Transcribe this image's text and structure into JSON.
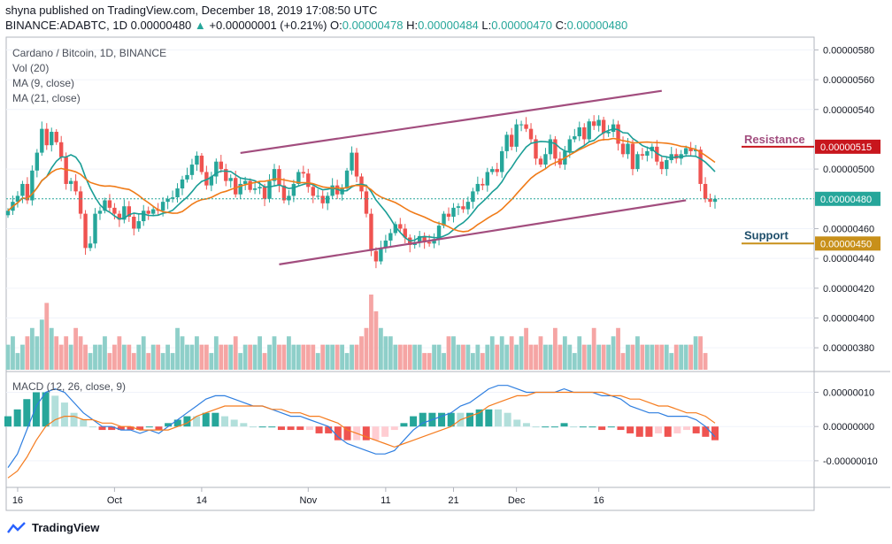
{
  "header": {
    "published": "shyna published on TradingView.com, December 18, 2019 17:08:50 UTC",
    "symbol": "BINANCE:ADABTC, 1D",
    "last": "0.00000480",
    "change_symbol": "▲",
    "change": "+0.00000001 (+0.21%)",
    "o_label": "O:",
    "o": "0.00000478",
    "h_label": "H:",
    "h": "0.00000484",
    "l_label": "L:",
    "l": "0.00000470",
    "c_label": "C:",
    "c": "0.00000480"
  },
  "legend": {
    "title": "Cardano / Bitcoin, 1D, BINANCE",
    "vol": "Vol (20)",
    "ma9": "MA (9, close)",
    "ma21": "MA (21, close)",
    "macd": "MACD (12, 26, close, 9)"
  },
  "footer": {
    "brand": "TradingView"
  },
  "colors": {
    "up": "#26a69a",
    "down": "#ef5350",
    "ma9": "#1a9e96",
    "ma21": "#f07b18",
    "channel": "#a24d7e",
    "resistance": "#c8161d",
    "support": "#c8901a",
    "macd": "#2f7fe0",
    "signal": "#f57c1f"
  },
  "chart_data": [
    {
      "type": "candlestick",
      "title": "Cardano / Bitcoin, 1D, BINANCE",
      "x_ticks": [
        "16",
        "Oct",
        "14",
        "Nov",
        "11",
        "21",
        "Dec",
        "16"
      ],
      "y_ticks": [
        "0.00000580",
        "0.00000560",
        "0.00000540",
        "0.00000500",
        "0.00000460",
        "0.00000440",
        "0.00000420",
        "0.00000400",
        "0.00000380"
      ],
      "ylim": [
        3.7e-06,
        5.85e-06
      ],
      "close": [
        4.72e-06,
        4.78e-06,
        4.82e-06,
        4.9e-06,
        4.79e-06,
        4.99e-06,
        5.11e-06,
        5.27e-06,
        5.16e-06,
        5.25e-06,
        5.18e-06,
        5.08e-06,
        4.9e-06,
        4.92e-06,
        4.85e-06,
        4.7e-06,
        4.47e-06,
        4.5e-06,
        4.7e-06,
        4.72e-06,
        4.79e-06,
        4.74e-06,
        4.7e-06,
        4.66e-06,
        4.75e-06,
        4.68e-06,
        4.6e-06,
        4.65e-06,
        4.72e-06,
        4.7e-06,
        4.73e-06,
        4.72e-06,
        4.78e-06,
        4.8e-06,
        4.81e-06,
        4.87e-06,
        4.93e-06,
        4.96e-06,
        5.03e-06,
        5.09e-06,
        4.98e-06,
        4.89e-06,
        4.95e-06,
        5.05e-06,
        5e-06,
        4.92e-06,
        4.94e-06,
        4.83e-06,
        4.9e-06,
        4.92e-06,
        4.86e-06,
        4.87e-06,
        4.88e-06,
        4.8e-06,
        4.92e-06,
        5e-06,
        4.89e-06,
        4.79e-06,
        4.82e-06,
        4.9e-06,
        4.98e-06,
        4.97e-06,
        4.88e-06,
        4.82e-06,
        4.82e-06,
        4.77e-06,
        4.82e-06,
        4.89e-06,
        4.83e-06,
        4.87e-06,
        4.99e-06,
        5.11e-06,
        4.95e-06,
        4.85e-06,
        4.7e-06,
        4.45e-06,
        4.38e-06,
        4.47e-06,
        4.52e-06,
        4.57e-06,
        4.63e-06,
        4.6e-06,
        4.54e-06,
        4.49e-06,
        4.51e-06,
        4.55e-06,
        4.51e-06,
        4.5e-06,
        4.53e-06,
        4.62e-06,
        4.7e-06,
        4.68e-06,
        4.74e-06,
        4.75e-06,
        4.73e-06,
        4.78e-06,
        4.85e-06,
        4.9e-06,
        4.89e-06,
        4.98e-06,
        5e-06,
        4.98e-06,
        5.12e-06,
        5.23e-06,
        5.15e-06,
        5.3e-06,
        5.3e-06,
        5.27e-06,
        5.2e-06,
        5.07e-06,
        5.03e-06,
        5.1e-06,
        5.2e-06,
        5.07e-06,
        5.03e-06,
        5.12e-06,
        5.2e-06,
        5.22e-06,
        5.28e-06,
        5.2e-06,
        5.32e-06,
        5.29e-06,
        5.33e-06,
        5.24e-06,
        5.25e-06,
        5.3e-06,
        5.17e-06,
        5.1e-06,
        5.17e-06,
        5e-06,
        5.1e-06,
        5.09e-06,
        5.12e-06,
        5.15e-06,
        5.05e-06,
        5e-06,
        5.06e-06,
        5.1e-06,
        5.07e-06,
        5.1e-06,
        5.14e-06,
        5.12e-06,
        5.13e-06,
        4.9e-06,
        4.8e-06,
        4.78e-06,
        4.8e-06
      ]
    },
    {
      "type": "bar",
      "title": "Vol (20)",
      "values": [
        3,
        4,
        2,
        3,
        4,
        5,
        4,
        6,
        8,
        5,
        4,
        3,
        4,
        3,
        5,
        4,
        3,
        2,
        3,
        3,
        4,
        2,
        3,
        4,
        3,
        3,
        2,
        3,
        4,
        2,
        3,
        3,
        2,
        3,
        2,
        5,
        4,
        3,
        3,
        4,
        3,
        3,
        2,
        4,
        3,
        3,
        3,
        4,
        2,
        3,
        3,
        3,
        4,
        2,
        3,
        4,
        3,
        3,
        4,
        3,
        3,
        3,
        3,
        3,
        2,
        3,
        3,
        3,
        3,
        3,
        2,
        3,
        3,
        4,
        5,
        9,
        7,
        5,
        4,
        4,
        3,
        3,
        3,
        3,
        3,
        3,
        2,
        2,
        3,
        3,
        2,
        4,
        4,
        3,
        3,
        3,
        2,
        3,
        2,
        3,
        4,
        3,
        4,
        3,
        4,
        3,
        4,
        5,
        3,
        3,
        4,
        3,
        3,
        5,
        3,
        4,
        3,
        2,
        4,
        3,
        3,
        5,
        3,
        3,
        3,
        4,
        5,
        2,
        3,
        3,
        4,
        3,
        3,
        3,
        3,
        3,
        3,
        2,
        3,
        3,
        3,
        3,
        4,
        4,
        2
      ]
    },
    {
      "type": "line",
      "title": "MACD (12, 26, close, 9)",
      "y_ticks": [
        "0.00000010",
        "0.00000000",
        "-0.00000010"
      ],
      "ylim": [
        -1.7e-07,
        1.4e-07
      ],
      "series": [
        {
          "name": "MACD",
          "values": [
            -1.2e-07,
            -8e-08,
            -1e-08,
            6e-08,
            1e-07,
            1.1e-07,
            1e-07,
            7e-08,
            4e-08,
            2e-08,
            0.0,
            0.0,
            -1e-08,
            -1e-08,
            -2e-08,
            -1e-08,
            -2e-08,
            0.0,
            2e-08,
            4e-08,
            6e-08,
            8e-08,
            9e-08,
            9e-08,
            8e-08,
            7e-08,
            6e-08,
            6e-08,
            5e-08,
            4e-08,
            3e-08,
            3e-08,
            2e-08,
            1e-08,
            0.0,
            -3e-08,
            -5e-08,
            -6e-08,
            -7e-08,
            -8e-08,
            -8e-08,
            -7e-08,
            -4e-08,
            -1e-08,
            1e-08,
            2e-08,
            3e-08,
            4e-08,
            6e-08,
            7e-08,
            9e-08,
            1.1e-07,
            1.2e-07,
            1.2e-07,
            1.1e-07,
            1e-07,
            1e-07,
            1e-07,
            1e-07,
            1.1e-07,
            1e-07,
            1e-07,
            1e-07,
            9e-08,
            9e-08,
            8e-08,
            6e-08,
            5e-08,
            4e-08,
            4e-08,
            3e-08,
            3e-08,
            3e-08,
            2e-08,
            0.0,
            -3e-08
          ]
        },
        {
          "name": "Signal",
          "values": [
            -1.5e-07,
            -1.3e-07,
            -9e-08,
            -4e-08,
            0.0,
            2e-08,
            3e-08,
            3e-08,
            2e-08,
            2e-08,
            1e-08,
            1e-08,
            0.0,
            0.0,
            -1e-08,
            -1e-08,
            -1e-08,
            -1e-08,
            0.0,
            1e-08,
            3e-08,
            4e-08,
            5e-08,
            6e-08,
            6e-08,
            6e-08,
            6e-08,
            6e-08,
            5e-08,
            5e-08,
            4e-08,
            4e-08,
            3e-08,
            3e-08,
            2e-08,
            1e-08,
            -1e-08,
            -2e-08,
            -3e-08,
            -4e-08,
            -5e-08,
            -6e-08,
            -5e-08,
            -4e-08,
            -3e-08,
            -2e-08,
            -1e-08,
            0.0,
            2e-08,
            3e-08,
            4e-08,
            6e-08,
            7e-08,
            8e-08,
            9e-08,
            9e-08,
            1e-07,
            1e-07,
            1e-07,
            1e-07,
            1e-07,
            1e-07,
            1e-07,
            1e-07,
            9e-08,
            9e-08,
            8e-08,
            8e-08,
            7e-08,
            6e-08,
            6e-08,
            5e-08,
            4e-08,
            4e-08,
            3e-08,
            1e-08
          ]
        }
      ]
    }
  ],
  "annotations": {
    "resistance_label": "Resistance",
    "resistance_value": "0.00000515",
    "support_label": "Support",
    "support_value": "0.00000450",
    "last_price_tag": "0.00000480"
  }
}
